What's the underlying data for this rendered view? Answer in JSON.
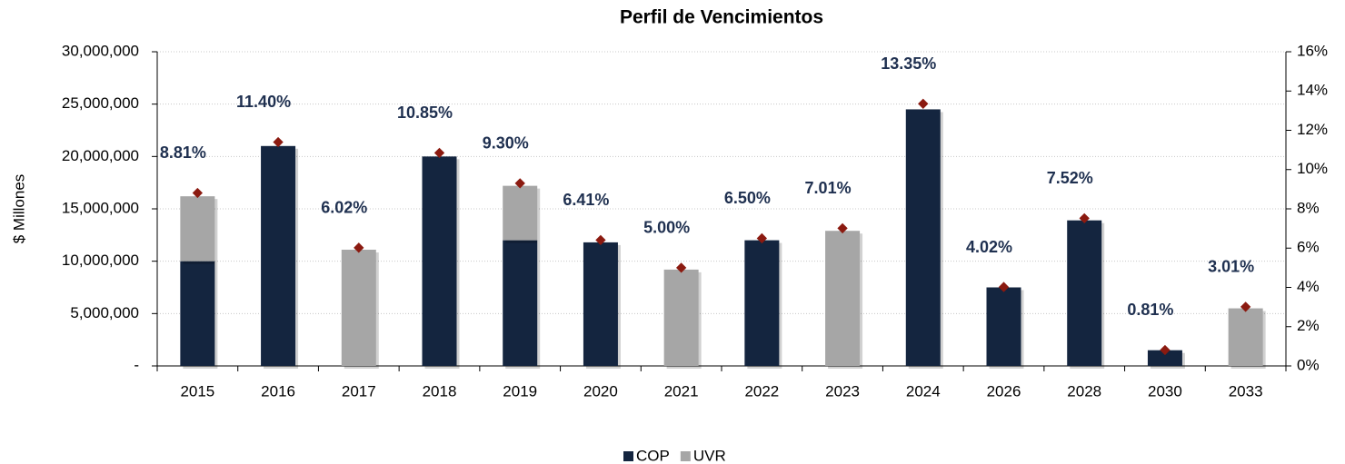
{
  "chart_data": {
    "type": "bar",
    "stacked": true,
    "title": "Perfil de Vencimientos",
    "y_label": "$ Millones",
    "categories": [
      "2015",
      "2016",
      "2017",
      "2018",
      "2019",
      "2020",
      "2021",
      "2022",
      "2023",
      "2024",
      "2026",
      "2028",
      "2030",
      "2033"
    ],
    "series": [
      {
        "name": "COP",
        "color": "#14253f",
        "values": [
          10000000,
          21000000,
          0,
          20000000,
          12000000,
          11800000,
          0,
          12000000,
          0,
          24500000,
          7500000,
          13900000,
          1500000,
          0
        ]
      },
      {
        "name": "UVR",
        "color": "#a6a6a6",
        "values": [
          6200000,
          0,
          11100000,
          0,
          5200000,
          0,
          9200000,
          0,
          12900000,
          0,
          0,
          0,
          0,
          5500000
        ]
      },
      {
        "type": "scatter",
        "axis": "y2",
        "color": "#8b1a10",
        "values": [
          8.81,
          11.4,
          6.02,
          10.85,
          9.3,
          6.41,
          5.0,
          6.5,
          7.01,
          13.35,
          4.02,
          7.52,
          0.81,
          3.01
        ],
        "value_labels": [
          "8.81%",
          "11.40%",
          "6.02%",
          "10.85%",
          "9.30%",
          "6.41%",
          "5.00%",
          "6.50%",
          "7.01%",
          "13.35%",
          "4.02%",
          "7.52%",
          "0.81%",
          "3.01%"
        ]
      }
    ],
    "ylim": [
      0,
      30000000
    ],
    "yticks": [
      {
        "value": 0,
        "label": "-"
      },
      {
        "value": 5000000,
        "label": "5,000,000"
      },
      {
        "value": 10000000,
        "label": "10,000,000"
      },
      {
        "value": 15000000,
        "label": "15,000,000"
      },
      {
        "value": 20000000,
        "label": "20,000,000"
      },
      {
        "value": 25000000,
        "label": "25,000,000"
      },
      {
        "value": 30000000,
        "label": "30,000,000"
      }
    ],
    "y2lim": [
      0,
      16
    ],
    "y2ticks": [
      {
        "value": 0,
        "label": "0%"
      },
      {
        "value": 2,
        "label": "2%"
      },
      {
        "value": 4,
        "label": "4%"
      },
      {
        "value": 6,
        "label": "6%"
      },
      {
        "value": 8,
        "label": "8%"
      },
      {
        "value": 10,
        "label": "10%"
      },
      {
        "value": 12,
        "label": "12%"
      },
      {
        "value": 14,
        "label": "14%"
      },
      {
        "value": 16,
        "label": "16%"
      }
    ],
    "grid": true,
    "legend": "bottom"
  }
}
